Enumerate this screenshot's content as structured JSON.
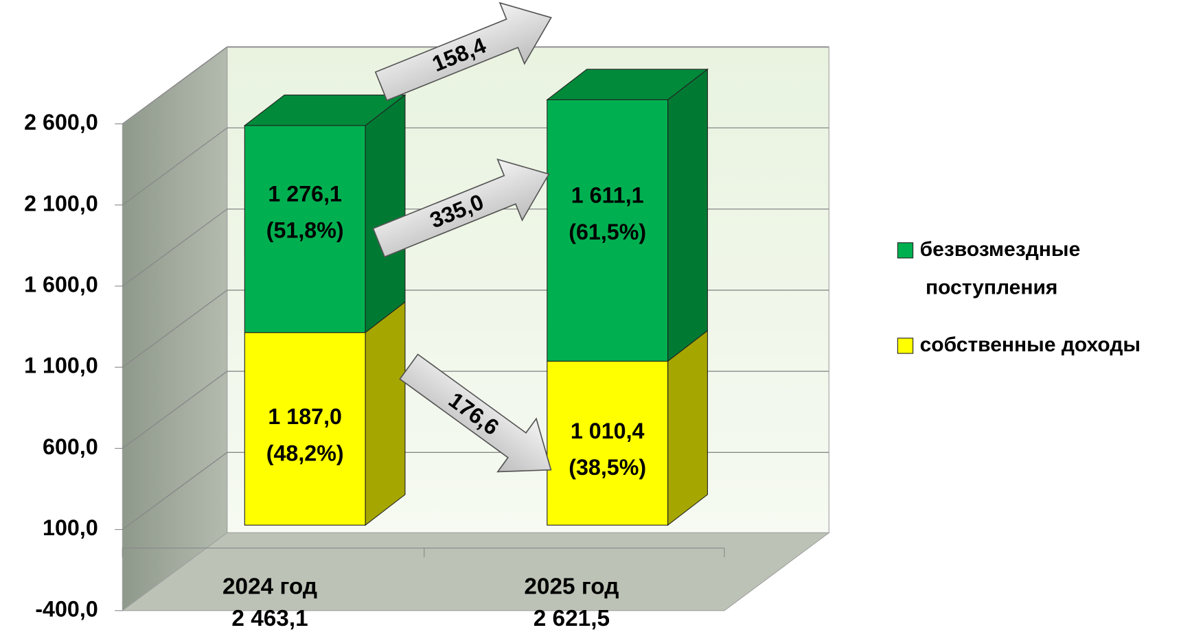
{
  "chart_data": {
    "type": "bar3d_stacked",
    "categories": [
      "2024 год",
      "2025 год"
    ],
    "total_labels": [
      "2 463,1",
      "2 621,5"
    ],
    "series": [
      {
        "name": "собственные доходы",
        "color": "#ffff00",
        "side_color": "#a6a600",
        "top_color": "#cccc00",
        "values": [
          1187.0,
          1010.4
        ],
        "value_labels": [
          "1 187,0",
          "1 010,4"
        ],
        "share_labels": [
          "(48,2%)",
          "(38,5%)"
        ]
      },
      {
        "name": "безвозмездные поступления",
        "color": "#00b050",
        "side_color": "#007a33",
        "top_color": "#008a3a",
        "values": [
          1276.1,
          1611.1
        ],
        "value_labels": [
          "1 276,1",
          "1 611,1"
        ],
        "share_labels": [
          "(51,8%)",
          "(61,5%)"
        ]
      }
    ],
    "ylim": [
      -400,
      3100
    ],
    "yticks": [
      {
        "value": -400,
        "label": "-400,0"
      },
      {
        "value": 100,
        "label": "100,0"
      },
      {
        "value": 600,
        "label": "600,0"
      },
      {
        "value": 1100,
        "label": "1 100,0"
      },
      {
        "value": 1600,
        "label": "1 600,0"
      },
      {
        "value": 2100,
        "label": "2 100,0"
      },
      {
        "value": 2600,
        "label": "2 600,0"
      }
    ],
    "grid": true,
    "legend": "right",
    "annotations": [
      "158,4",
      "335,0",
      "176,6"
    ]
  }
}
